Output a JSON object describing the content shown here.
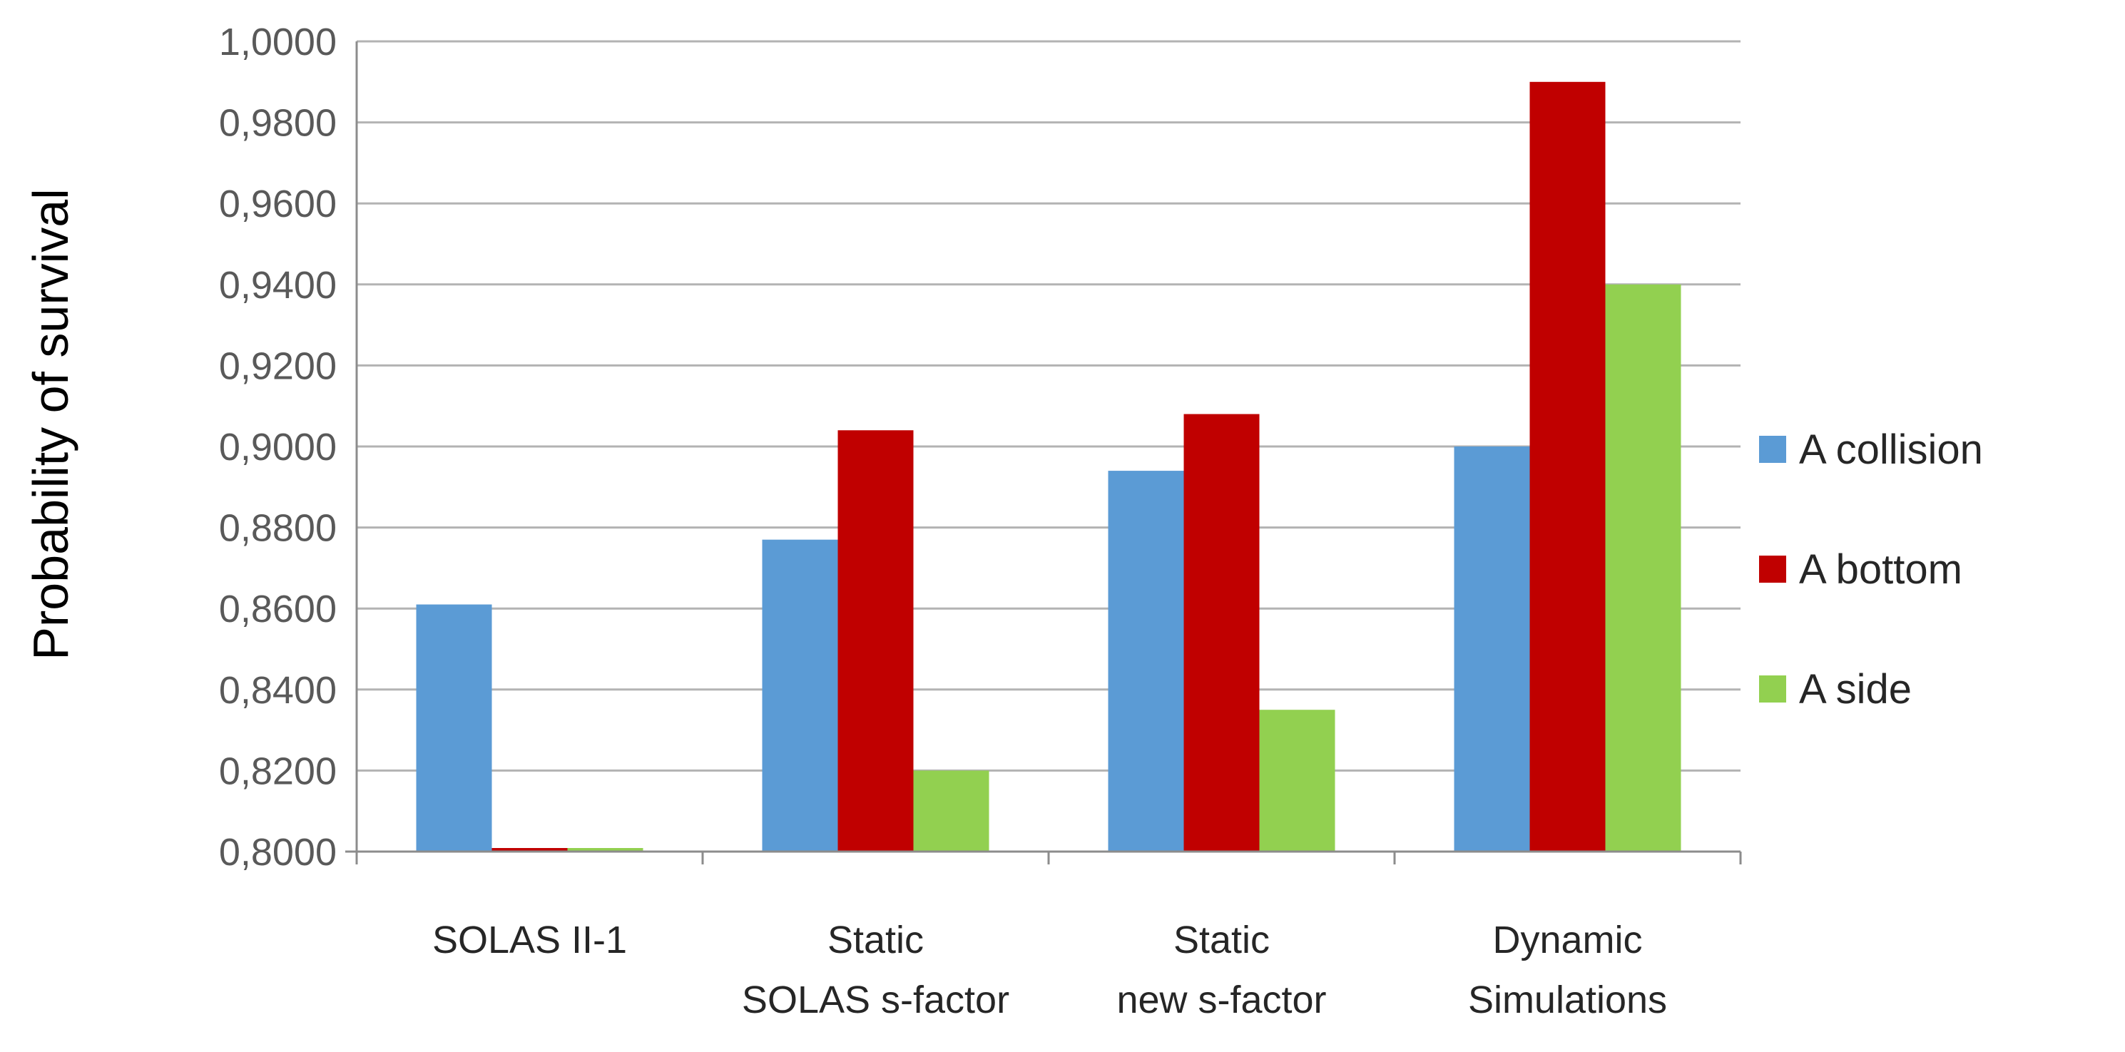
{
  "chart_data": {
    "type": "bar",
    "title": "",
    "xlabel": "",
    "ylabel": "Probability of survival",
    "ylim": [
      0.8,
      1.0
    ],
    "y_ticks": [
      "0,8000",
      "0,8200",
      "0,8400",
      "0,8600",
      "0,8800",
      "0,9000",
      "0,9200",
      "0,9400",
      "0,9600",
      "0,9800",
      "1,0000"
    ],
    "y_tick_values": [
      0.8,
      0.82,
      0.84,
      0.86,
      0.88,
      0.9,
      0.92,
      0.94,
      0.96,
      0.98,
      1.0
    ],
    "grid": true,
    "legend_position": "right",
    "categories": [
      [
        "SOLAS II-1"
      ],
      [
        "Static",
        "SOLAS s-factor"
      ],
      [
        "Static",
        "new s-factor"
      ],
      [
        "Dynamic",
        "Simulations"
      ]
    ],
    "series": [
      {
        "name": "A collision",
        "color": "#5b9bd5",
        "values": [
          0.861,
          0.877,
          0.894,
          0.9
        ]
      },
      {
        "name": "A bottom",
        "color": "#c00000",
        "values": [
          0.799,
          0.904,
          0.908,
          0.99
        ]
      },
      {
        "name": "A side",
        "color": "#92d050",
        "values": [
          0.8,
          0.82,
          0.835,
          0.94
        ]
      }
    ]
  }
}
